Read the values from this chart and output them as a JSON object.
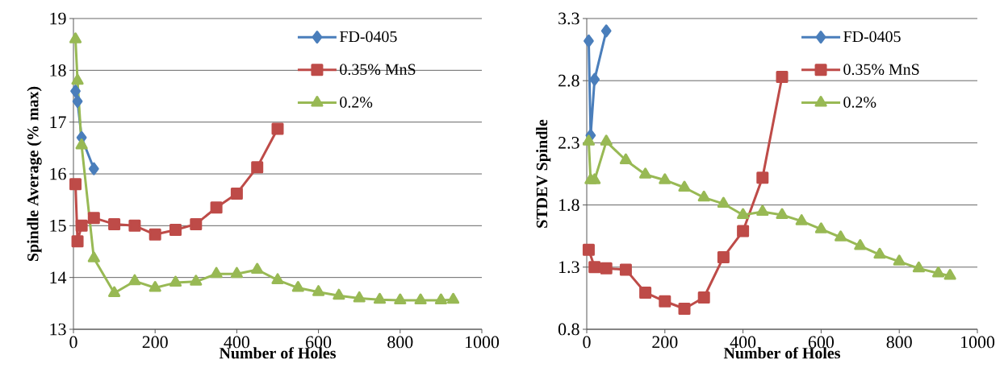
{
  "chart_data": [
    {
      "type": "line",
      "xlabel": "Number of Holes",
      "ylabel": "Spindle Average (% max)",
      "xlim": [
        0,
        1000
      ],
      "xticks": [
        0,
        200,
        400,
        600,
        800,
        1000
      ],
      "ylim": [
        13,
        19
      ],
      "yticks": [
        13,
        14,
        15,
        16,
        17,
        18,
        19
      ],
      "grid": "y",
      "legend": "top right",
      "line_style": "solid",
      "series": [
        {
          "name": "FD-0405",
          "color": "#4a7ebb",
          "marker": "diamond",
          "x": [
            5,
            10,
            20,
            50
          ],
          "values": [
            17.6,
            17.4,
            16.7,
            16.1
          ]
        },
        {
          "name": "0.35% MnS",
          "color": "#be4b48",
          "marker": "square",
          "x": [
            5,
            10,
            20,
            50,
            100,
            150,
            200,
            250,
            300,
            350,
            400,
            450,
            500
          ],
          "values": [
            15.8,
            14.7,
            15.0,
            15.15,
            15.03,
            15.0,
            14.83,
            14.92,
            15.03,
            15.35,
            15.62,
            16.13,
            16.87
          ]
        },
        {
          "name": "0.2%",
          "color": "#98b954",
          "marker": "triangle",
          "x": [
            5,
            10,
            20,
            50,
            100,
            150,
            200,
            250,
            300,
            350,
            400,
            450,
            500,
            550,
            600,
            650,
            700,
            750,
            800,
            850,
            900,
            930
          ],
          "values": [
            18.6,
            17.8,
            16.55,
            14.37,
            13.7,
            13.93,
            13.8,
            13.9,
            13.92,
            14.07,
            14.07,
            14.15,
            13.95,
            13.8,
            13.72,
            13.65,
            13.6,
            13.57,
            13.56,
            13.56,
            13.56,
            13.57
          ]
        }
      ]
    },
    {
      "type": "line",
      "xlabel": "Number of Holes",
      "ylabel": "STDEV Spindle",
      "xlim": [
        0,
        1000
      ],
      "xticks": [
        0,
        200,
        400,
        600,
        800,
        1000
      ],
      "ylim": [
        0.8,
        3.3
      ],
      "yticks": [
        0.8,
        1.3,
        1.8,
        2.3,
        2.8,
        3.3
      ],
      "grid": "y",
      "legend": "top right",
      "line_style": "solid",
      "series": [
        {
          "name": "FD-0405",
          "color": "#4a7ebb",
          "marker": "diamond",
          "x": [
            5,
            10,
            20,
            50
          ],
          "values": [
            3.12,
            2.36,
            2.81,
            3.2
          ]
        },
        {
          "name": "0.35% MnS",
          "color": "#be4b48",
          "marker": "square",
          "x": [
            5,
            20,
            50,
            100,
            150,
            200,
            250,
            300,
            350,
            400,
            450,
            500
          ],
          "values": [
            1.44,
            1.3,
            1.29,
            1.28,
            1.095,
            1.025,
            0.965,
            1.056,
            1.38,
            1.59,
            2.02,
            2.83
          ]
        },
        {
          "name": "0.2%",
          "color": "#98b954",
          "marker": "triangle",
          "x": [
            5,
            10,
            20,
            50,
            100,
            150,
            200,
            250,
            300,
            350,
            400,
            450,
            500,
            550,
            600,
            650,
            700,
            750,
            800,
            850,
            900,
            930
          ],
          "values": [
            2.31,
            2.0,
            2.0,
            2.31,
            2.16,
            2.045,
            2.0,
            1.94,
            1.86,
            1.81,
            1.72,
            1.745,
            1.72,
            1.67,
            1.605,
            1.54,
            1.47,
            1.4,
            1.345,
            1.29,
            1.25,
            1.23
          ]
        }
      ]
    }
  ]
}
